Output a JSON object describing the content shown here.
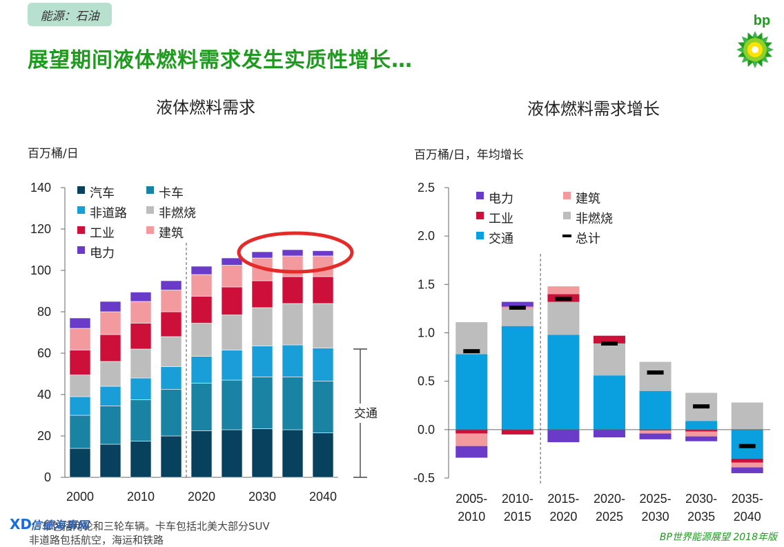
{
  "tag": "能源：石油",
  "headline": "展望期间液体燃料需求发生实质性增长…",
  "brand": "bp",
  "source": "BP世界能源展望 2018年版",
  "footnote": {
    "line1": "车包括两轮和三轮车辆。卡车包括北美大部分SUV",
    "line2": "非道路包括航空，海运和铁路"
  },
  "watermark": "信德海事网",
  "colors": {
    "car": "#08415e",
    "truck": "#1a83a3",
    "offroad": "#199ed8",
    "nonfuel": "#bdbdbd",
    "industry": "#cc1039",
    "building": "#f39a9f",
    "power": "#6a3bc8",
    "transport": "#0aa0df",
    "highlight": "#e52a2a",
    "brand_green": "#1e9b1e"
  },
  "chart_data": [
    {
      "type": "bar",
      "stacked": true,
      "title": "液体燃料需求",
      "ylabel": "百万桶/日",
      "ylim": [
        0,
        140
      ],
      "yticks": [
        0,
        20,
        40,
        60,
        80,
        100,
        120,
        140
      ],
      "xticklabels": [
        "2000",
        "2010",
        "2020",
        "2030",
        "2040"
      ],
      "categories": [
        "2000",
        "2005",
        "2010",
        "2015",
        "2020",
        "2025",
        "2030",
        "2035",
        "2040"
      ],
      "divider_between_index": [
        3,
        4
      ],
      "legend_position": "top-left",
      "series": [
        {
          "name": "汽车",
          "color_key": "car",
          "values": [
            14,
            16,
            17.5,
            20,
            22.5,
            23,
            23.5,
            23,
            21.5
          ]
        },
        {
          "name": "卡车",
          "color_key": "truck",
          "values": [
            16,
            18.5,
            20,
            22.5,
            23,
            24,
            25,
            25.5,
            25
          ]
        },
        {
          "name": "非道路",
          "color_key": "offroad",
          "values": [
            9,
            9.5,
            10.5,
            11,
            13,
            14.5,
            15,
            15.5,
            16
          ]
        },
        {
          "name": "非燃烧",
          "color_key": "nonfuel",
          "values": [
            10.5,
            12,
            14,
            14.5,
            16,
            17,
            18.5,
            20,
            21.5
          ]
        },
        {
          "name": "工业",
          "color_key": "industry",
          "values": [
            12,
            13,
            12.5,
            12,
            13,
            13.5,
            13,
            13,
            13
          ]
        },
        {
          "name": "建筑",
          "color_key": "building",
          "values": [
            10.5,
            11,
            10.5,
            10.5,
            10.5,
            10.5,
            11,
            10,
            10
          ]
        },
        {
          "name": "电力",
          "color_key": "power",
          "values": [
            5,
            5,
            4.5,
            4.5,
            4,
            3.5,
            3,
            3,
            2.5
          ]
        }
      ],
      "annotation": "交通",
      "annotation_range": [
        0,
        62
      ]
    },
    {
      "type": "bar",
      "stacked": true,
      "title": "液体燃料需求增长",
      "ylabel": "百万桶/日，年均增长",
      "ylim": [
        -0.5,
        2.5
      ],
      "yticks": [
        "-0.5",
        "0.0",
        "0.5",
        "1.0",
        "1.5",
        "2.0",
        "2.5"
      ],
      "categories": [
        [
          "2005-",
          "2010"
        ],
        [
          "2010-",
          "2015"
        ],
        [
          "2015-",
          "2020"
        ],
        [
          "2020-",
          "2025"
        ],
        [
          "2025-",
          "2030"
        ],
        [
          "2030-",
          "2035"
        ],
        [
          "2035-",
          "2040"
        ]
      ],
      "divider_between_index": [
        1,
        2
      ],
      "legend_position": "top-left",
      "legend": [
        {
          "name": "电力",
          "color_key": "power"
        },
        {
          "name": "建筑",
          "color_key": "building"
        },
        {
          "name": "工业",
          "color_key": "industry"
        },
        {
          "name": "非燃烧",
          "color_key": "nonfuel"
        },
        {
          "name": "交通",
          "color_key": "transport"
        },
        {
          "name": "总计",
          "marker": "dash"
        }
      ],
      "series": [
        {
          "name": "交通",
          "color_key": "transport",
          "values": [
            0.78,
            1.07,
            0.98,
            0.56,
            0.4,
            0.09,
            -0.3
          ]
        },
        {
          "name": "非燃烧",
          "color_key": "nonfuel",
          "values": [
            0.33,
            0.18,
            0.34,
            0.33,
            0.3,
            0.29,
            0.28
          ]
        },
        {
          "name": "工业",
          "color_key": "industry",
          "values": [
            -0.04,
            -0.05,
            0.08,
            0.08,
            -0.01,
            -0.02,
            -0.04
          ]
        },
        {
          "name": "建筑",
          "color_key": "building",
          "values": [
            -0.13,
            0.02,
            0.08,
            0,
            -0.03,
            -0.05,
            -0.05
          ]
        },
        {
          "name": "电力",
          "color_key": "power",
          "values": [
            -0.12,
            0.05,
            -0.13,
            -0.08,
            -0.06,
            -0.05,
            -0.06
          ]
        }
      ],
      "total": [
        0.81,
        1.26,
        1.35,
        0.89,
        0.59,
        0.24,
        -0.17
      ]
    }
  ]
}
